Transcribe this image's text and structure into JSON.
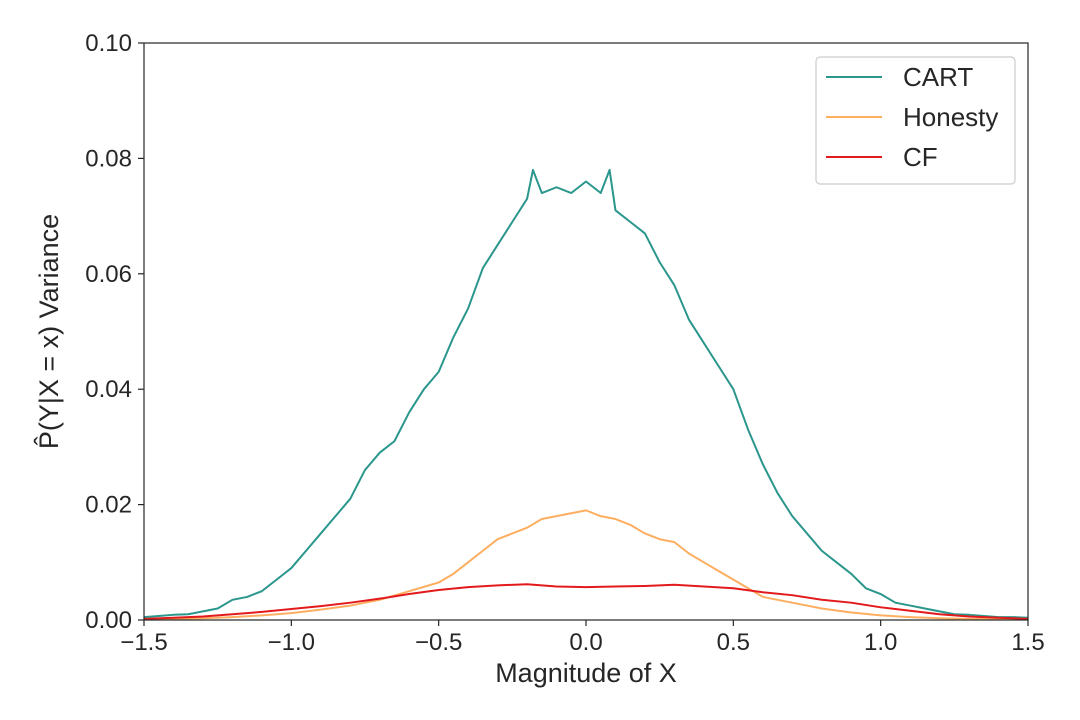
{
  "chart_data": {
    "type": "line",
    "title": "",
    "xlabel": "Magnitude of X",
    "ylabel": "P̂(Y|X = x) Variance",
    "xlim": [
      -1.5,
      1.5
    ],
    "ylim": [
      0.0,
      0.1
    ],
    "xticks": [
      -1.5,
      -1.0,
      -0.5,
      0.0,
      0.5,
      1.0,
      1.5
    ],
    "xtick_labels": [
      "−1.5",
      "−1.0",
      "−0.5",
      "0.0",
      "0.5",
      "1.0",
      "1.5"
    ],
    "yticks": [
      0.0,
      0.02,
      0.04,
      0.06,
      0.08,
      0.1
    ],
    "ytick_labels": [
      "0.00",
      "0.02",
      "0.04",
      "0.06",
      "0.08",
      "0.10"
    ],
    "grid": false,
    "legend_position": "top-right",
    "series": [
      {
        "name": "CART",
        "color": "#2a968c",
        "x": [
          -1.5,
          -1.45,
          -1.4,
          -1.35,
          -1.3,
          -1.25,
          -1.2,
          -1.15,
          -1.1,
          -1.05,
          -1.0,
          -0.95,
          -0.9,
          -0.85,
          -0.8,
          -0.75,
          -0.7,
          -0.65,
          -0.6,
          -0.55,
          -0.5,
          -0.45,
          -0.4,
          -0.35,
          -0.3,
          -0.25,
          -0.2,
          -0.18,
          -0.15,
          -0.1,
          -0.05,
          0.0,
          0.05,
          0.08,
          0.1,
          0.15,
          0.2,
          0.25,
          0.3,
          0.35,
          0.4,
          0.45,
          0.5,
          0.55,
          0.6,
          0.65,
          0.7,
          0.75,
          0.8,
          0.85,
          0.9,
          0.95,
          1.0,
          1.05,
          1.1,
          1.15,
          1.2,
          1.25,
          1.3,
          1.35,
          1.4,
          1.45,
          1.5
        ],
        "y": [
          0.0005,
          0.0007,
          0.0009,
          0.001,
          0.0015,
          0.002,
          0.0035,
          0.004,
          0.005,
          0.007,
          0.009,
          0.012,
          0.015,
          0.018,
          0.021,
          0.026,
          0.029,
          0.031,
          0.036,
          0.04,
          0.043,
          0.049,
          0.054,
          0.061,
          0.065,
          0.069,
          0.073,
          0.078,
          0.074,
          0.075,
          0.074,
          0.076,
          0.074,
          0.078,
          0.071,
          0.069,
          0.067,
          0.062,
          0.058,
          0.052,
          0.048,
          0.044,
          0.04,
          0.033,
          0.027,
          0.022,
          0.018,
          0.015,
          0.012,
          0.01,
          0.008,
          0.0055,
          0.0045,
          0.003,
          0.0025,
          0.002,
          0.0015,
          0.001,
          0.0009,
          0.0007,
          0.0005,
          0.0005,
          0.0004
        ]
      },
      {
        "name": "Honesty",
        "color": "#fdae61",
        "x": [
          -1.5,
          -1.4,
          -1.3,
          -1.2,
          -1.1,
          -1.0,
          -0.9,
          -0.8,
          -0.7,
          -0.6,
          -0.5,
          -0.45,
          -0.4,
          -0.35,
          -0.3,
          -0.25,
          -0.2,
          -0.15,
          -0.1,
          -0.05,
          0.0,
          0.05,
          0.1,
          0.15,
          0.2,
          0.25,
          0.3,
          0.35,
          0.4,
          0.45,
          0.5,
          0.55,
          0.6,
          0.7,
          0.8,
          0.9,
          1.0,
          1.1,
          1.2,
          1.3,
          1.4,
          1.5
        ],
        "y": [
          0.0001,
          0.0002,
          0.0003,
          0.0005,
          0.0008,
          0.0012,
          0.0018,
          0.0025,
          0.0035,
          0.005,
          0.0065,
          0.008,
          0.01,
          0.012,
          0.014,
          0.015,
          0.016,
          0.0175,
          0.018,
          0.0185,
          0.019,
          0.018,
          0.0175,
          0.0165,
          0.015,
          0.014,
          0.0135,
          0.0115,
          0.01,
          0.0085,
          0.007,
          0.0055,
          0.004,
          0.003,
          0.002,
          0.0013,
          0.0008,
          0.0005,
          0.0003,
          0.0002,
          0.0001,
          0.0001
        ]
      },
      {
        "name": "CF",
        "color": "#e31a1c",
        "x": [
          -1.5,
          -1.4,
          -1.3,
          -1.2,
          -1.1,
          -1.0,
          -0.9,
          -0.8,
          -0.7,
          -0.6,
          -0.5,
          -0.4,
          -0.3,
          -0.2,
          -0.1,
          0.0,
          0.1,
          0.2,
          0.3,
          0.4,
          0.5,
          0.6,
          0.7,
          0.8,
          0.9,
          1.0,
          1.1,
          1.2,
          1.3,
          1.4,
          1.5
        ],
        "y": [
          0.0002,
          0.0004,
          0.0006,
          0.001,
          0.0014,
          0.0019,
          0.0024,
          0.003,
          0.0037,
          0.0045,
          0.0052,
          0.0057,
          0.006,
          0.0062,
          0.0058,
          0.0057,
          0.0058,
          0.0059,
          0.0061,
          0.0058,
          0.0055,
          0.0048,
          0.0043,
          0.0035,
          0.003,
          0.0022,
          0.0016,
          0.001,
          0.0006,
          0.0004,
          0.0002
        ]
      }
    ]
  }
}
